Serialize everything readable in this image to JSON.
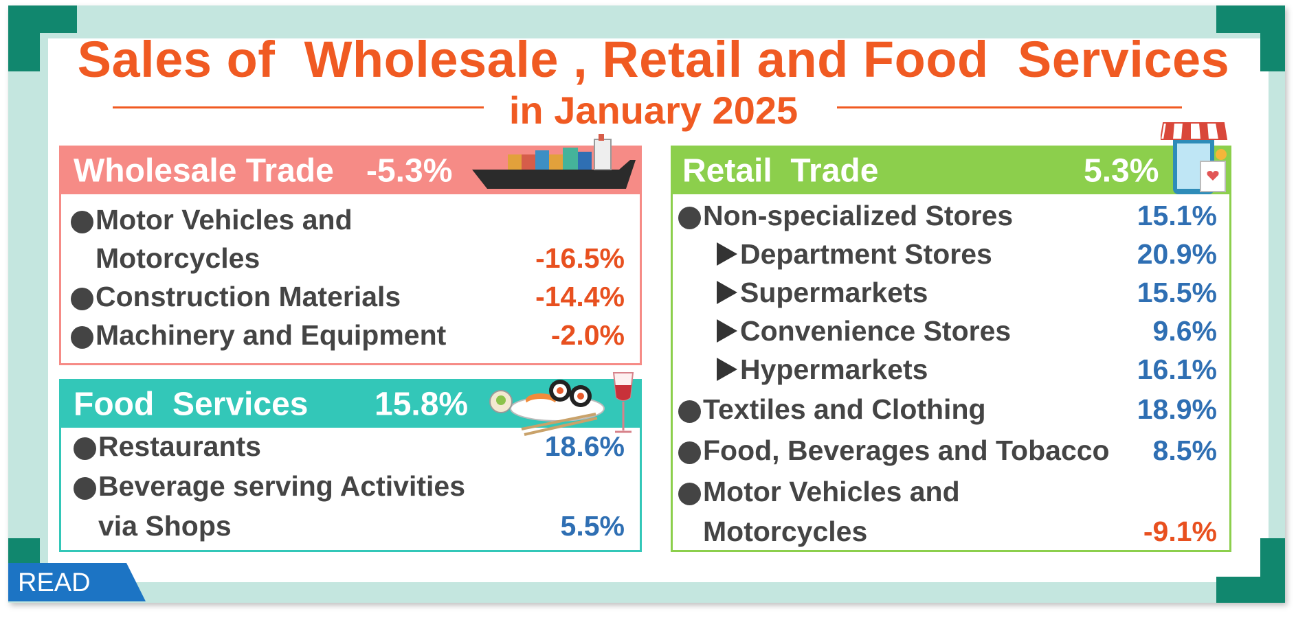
{
  "title": {
    "line1": "Sales of  Wholesale , Retail and Food  Services",
    "line2": "in January 2025"
  },
  "colors": {
    "accent": "#f05a22",
    "wholesale": "#f68b86",
    "retail": "#8ccf4c",
    "food": "#33c7b8",
    "corner": "#11876e",
    "negative": "#e8501f",
    "positive": "#2f6fb3"
  },
  "wholesale": {
    "label": "Wholesale Trade",
    "value": "-5.3%",
    "icon": "cargo-ship-icon",
    "items": [
      {
        "line1": "Motor Vehicles and",
        "line2": "Motorcycles",
        "value": "-16.5%"
      },
      {
        "label": "Construction Materials",
        "value": "-14.4%"
      },
      {
        "label": "Machinery and Equipment",
        "value": "-2.0%"
      }
    ]
  },
  "food": {
    "label": "Food  Services",
    "value": "15.8%",
    "icon": "sushi-wine-icon",
    "items": [
      {
        "label": "Restaurants",
        "value": "18.6%"
      },
      {
        "line1": "Beverage serving Activities",
        "line2": "via Shops",
        "value": "5.5%"
      }
    ]
  },
  "retail": {
    "label": "Retail  Trade",
    "value": "5.3%",
    "icon": "shop-phone-icon",
    "items": [
      {
        "label": "Non-specialized Stores",
        "value": "15.1%"
      },
      {
        "label": "Department Stores",
        "value": "20.9%"
      },
      {
        "label": "Supermarkets",
        "value": "15.5%"
      },
      {
        "label": "Convenience Stores",
        "value": "9.6%"
      },
      {
        "label": "Hypermarkets",
        "value": "16.1%"
      },
      {
        "label": "Textiles and Clothing",
        "value": "18.9%"
      },
      {
        "label": "Food, Beverages and Tobacco",
        "value": "8.5%"
      },
      {
        "line1": "Motor Vehicles and",
        "line2": "Motorcycles",
        "value": "-9.1%"
      }
    ]
  },
  "read_button": "READ"
}
